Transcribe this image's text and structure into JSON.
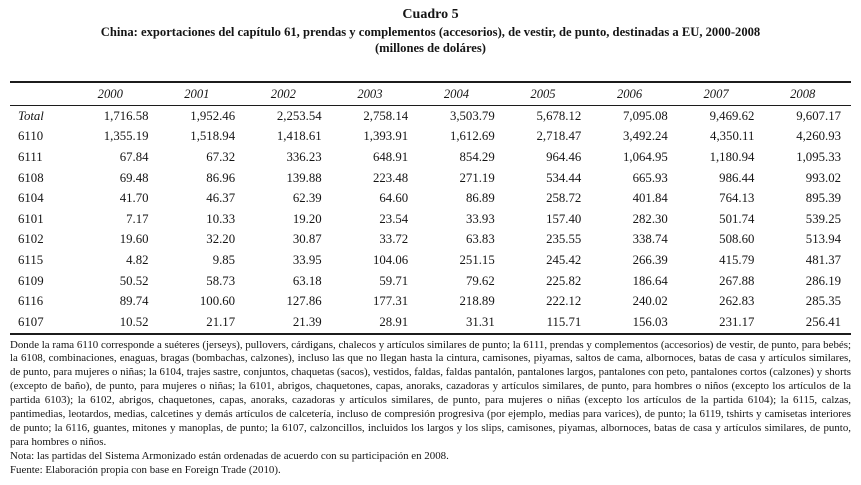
{
  "header": {
    "title": "Cuadro 5",
    "subtitle": "China: exportaciones del capítulo 61, prendas y complementos (accesorios), de vestir, de punto, destinadas a EU, 2000-2008",
    "units": "(millones de doláres)"
  },
  "table": {
    "columns": [
      "2000",
      "2001",
      "2002",
      "2003",
      "2004",
      "2005",
      "2006",
      "2007",
      "2008"
    ],
    "rows": [
      {
        "label": "Total",
        "italic": true,
        "values": [
          "1,716.58",
          "1,952.46",
          "2,253.54",
          "2,758.14",
          "3,503.79",
          "5,678.12",
          "7,095.08",
          "9,469.62",
          "9,607.17"
        ]
      },
      {
        "label": "6110",
        "italic": false,
        "values": [
          "1,355.19",
          "1,518.94",
          "1,418.61",
          "1,393.91",
          "1,612.69",
          "2,718.47",
          "3,492.24",
          "4,350.11",
          "4,260.93"
        ]
      },
      {
        "label": "6111",
        "italic": false,
        "values": [
          "67.84",
          "67.32",
          "336.23",
          "648.91",
          "854.29",
          "964.46",
          "1,064.95",
          "1,180.94",
          "1,095.33"
        ]
      },
      {
        "label": "6108",
        "italic": false,
        "values": [
          "69.48",
          "86.96",
          "139.88",
          "223.48",
          "271.19",
          "534.44",
          "665.93",
          "986.44",
          "993.02"
        ]
      },
      {
        "label": "6104",
        "italic": false,
        "values": [
          "41.70",
          "46.37",
          "62.39",
          "64.60",
          "86.89",
          "258.72",
          "401.84",
          "764.13",
          "895.39"
        ]
      },
      {
        "label": "6101",
        "italic": false,
        "values": [
          "7.17",
          "10.33",
          "19.20",
          "23.54",
          "33.93",
          "157.40",
          "282.30",
          "501.74",
          "539.25"
        ]
      },
      {
        "label": "6102",
        "italic": false,
        "values": [
          "19.60",
          "32.20",
          "30.87",
          "33.72",
          "63.83",
          "235.55",
          "338.74",
          "508.60",
          "513.94"
        ]
      },
      {
        "label": "6115",
        "italic": false,
        "values": [
          "4.82",
          "9.85",
          "33.95",
          "104.06",
          "251.15",
          "245.42",
          "266.39",
          "415.79",
          "481.37"
        ]
      },
      {
        "label": "6109",
        "italic": false,
        "values": [
          "50.52",
          "58.73",
          "63.18",
          "59.71",
          "79.62",
          "225.82",
          "186.64",
          "267.88",
          "286.19"
        ]
      },
      {
        "label": "6116",
        "italic": false,
        "values": [
          "89.74",
          "100.60",
          "127.86",
          "177.31",
          "218.89",
          "222.12",
          "240.02",
          "262.83",
          "285.35"
        ]
      },
      {
        "label": "6107",
        "italic": false,
        "values": [
          "10.52",
          "21.17",
          "21.39",
          "28.91",
          "31.31",
          "115.71",
          "156.03",
          "231.17",
          "256.41"
        ]
      }
    ]
  },
  "notes": {
    "description": "Donde la rama 6110 corresponde a suéteres (jerseys), pullovers, cárdigans, chalecos y artículos similares de punto; la 6111, prendas y complementos (accesorios) de vestir, de punto, para bebés; la 6108, combinaciones, enaguas, bragas (bombachas, calzones), incluso las que no llegan hasta la cintura, camisones, piyamas, saltos de cama, albornoces, batas de casa y artículos similares, de punto, para mujeres o niñas; la 6104, trajes sastre, conjuntos, chaquetas (sacos), vestidos, faldas, faldas pantalón, pantalones largos, pantalones con peto, pantalones cortos (calzones) y shorts (excepto de baño), de punto, para mujeres o niñas; la 6101, abrigos, chaquetones, capas, anoraks, cazadoras y artículos similares, de punto, para hombres o niños (excepto los artículos de la partida 6103); la 6102, abrigos, chaquetones, capas, anoraks, cazadoras y artículos similares, de punto, para mujeres o niñas (excepto los artículos de la partida 6104); la 6115, calzas, pantimedias, leotardos, medias, calcetines y demás artículos de calcetería, incluso de compresión progresiva (por ejemplo, medias para varices), de punto; la 6119, tshirts y camisetas interiores de punto; la 6116, guantes, mitones y manoplas, de punto; la 6107, calzoncillos, incluidos los largos y los slips, camisones, piyamas, albornoces, batas de casa y artículos similares, de punto, para hombres o niños.",
    "nota": "Nota: las partidas del Sistema Armonizado están ordenadas de acuerdo con su participación en 2008.",
    "fuente": "Fuente: Elaboración propia con base en Foreign Trade (2010)."
  }
}
